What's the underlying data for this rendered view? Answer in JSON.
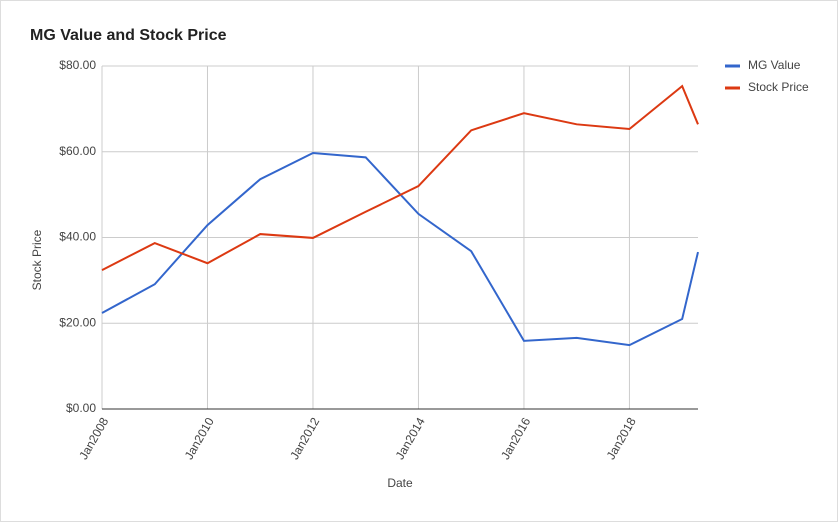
{
  "chart_data": {
    "type": "line",
    "title": "MG Value and Stock Price",
    "x_label": "Date",
    "y_label": "Stock Price",
    "x": [
      2008,
      2009,
      2010,
      2011,
      2012,
      2013,
      2014,
      2015,
      2016,
      2017,
      2018,
      2019,
      2019.3
    ],
    "series": [
      {
        "name": "MG Value",
        "color": "#3366cc",
        "values": [
          22.4,
          29.1,
          42.9,
          53.6,
          59.7,
          58.7,
          45.5,
          36.8,
          15.9,
          16.6,
          14.9,
          21,
          36.6
        ]
      },
      {
        "name": "Stock Price",
        "color": "#dc3912",
        "values": [
          32.4,
          38.7,
          34,
          40.8,
          39.9,
          46,
          52,
          65,
          69,
          66.4,
          65.3,
          75.3,
          66.4
        ]
      }
    ],
    "xlim": [
      2008,
      2019.3
    ],
    "xticks": [
      {
        "value": 2008,
        "label": "Jan2008"
      },
      {
        "value": 2010,
        "label": "Jan2010"
      },
      {
        "value": 2012,
        "label": "Jan2012"
      },
      {
        "value": 2014,
        "label": "Jan2014"
      },
      {
        "value": 2016,
        "label": "Jan2016"
      },
      {
        "value": 2018,
        "label": "Jan2018"
      }
    ],
    "ylim": [
      0,
      80
    ],
    "yticks": [
      {
        "value": 0,
        "label": "$0.00"
      },
      {
        "value": 20,
        "label": "$20.00"
      },
      {
        "value": 40,
        "label": "$40.00"
      },
      {
        "value": 60,
        "label": "$60.00"
      },
      {
        "value": 80,
        "label": "$80.00"
      }
    ],
    "grid": true,
    "legend": "top-right"
  }
}
